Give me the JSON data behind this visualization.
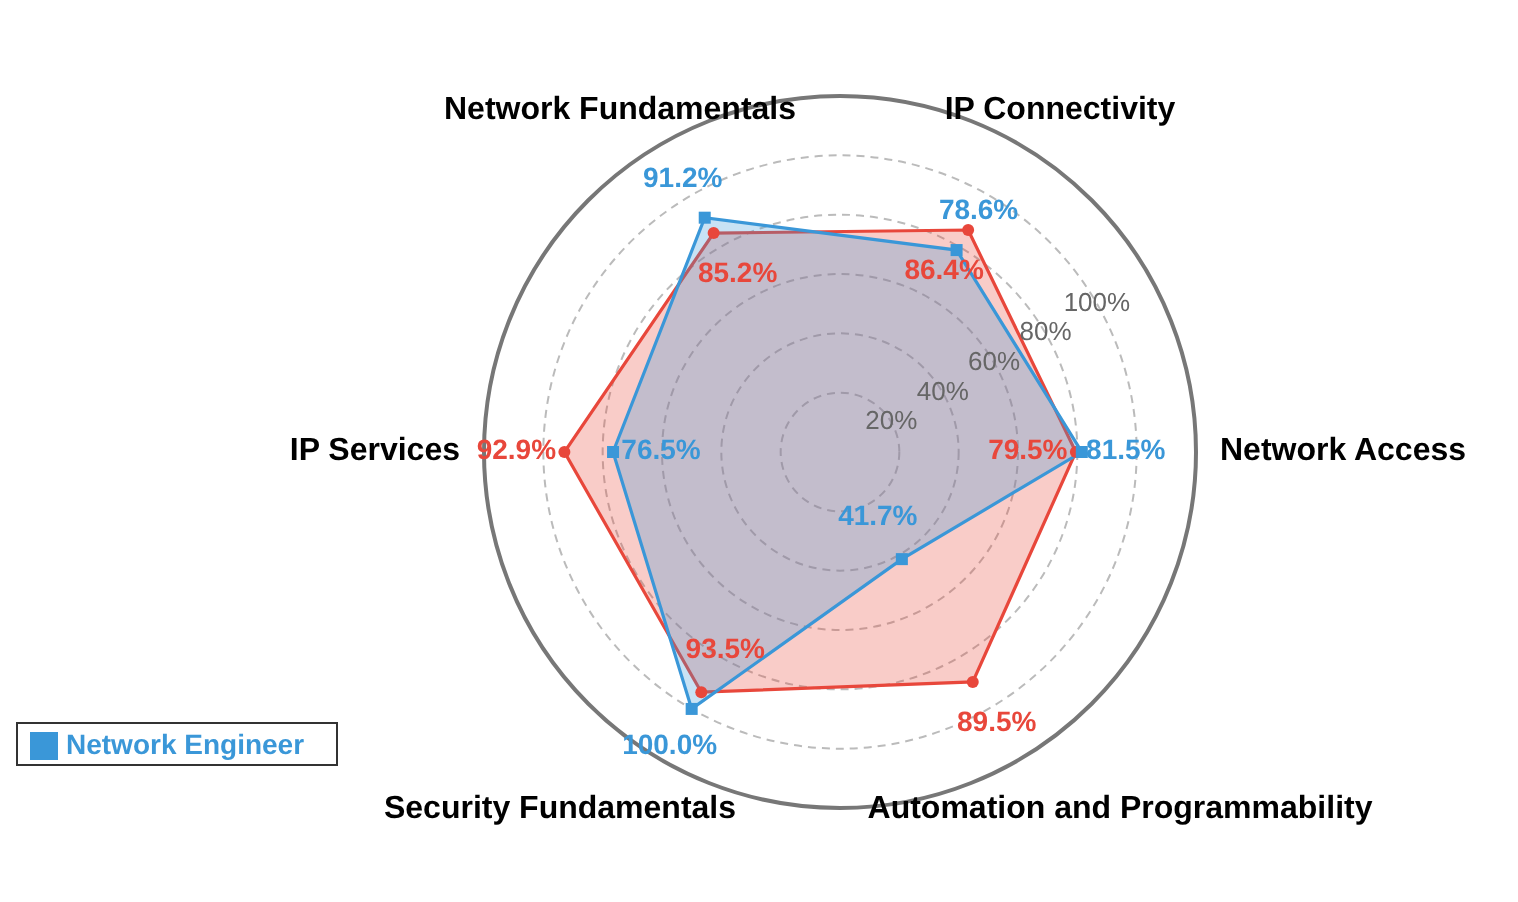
{
  "chart_data": {
    "type": "radar",
    "categories": [
      "IP Connectivity",
      "Network Access",
      "Automation and Programmability",
      "Security Fundamentals",
      "IP Services",
      "Network Fundamentals"
    ],
    "series": [
      {
        "color": "#e8473b",
        "marker": "circle",
        "values": [
          86.4,
          79.5,
          89.5,
          93.5,
          92.9,
          85.2
        ],
        "value_labels": [
          "86.4%",
          "79.5%",
          "89.5%",
          "93.5%",
          "92.9%",
          "85.2%"
        ]
      },
      {
        "name": "Network Engineer",
        "color": "#3a97d8",
        "marker": "square",
        "values": [
          78.6,
          81.5,
          41.7,
          100.0,
          76.5,
          91.2
        ],
        "value_labels": [
          "78.6%",
          "81.5%",
          "41.7%",
          "100.0%",
          "76.5%",
          "91.2%"
        ]
      }
    ],
    "ylim": [
      0,
      120
    ],
    "yticks": [
      {
        "value": 20,
        "label": "20%"
      },
      {
        "value": 40,
        "label": "40%"
      },
      {
        "value": 60,
        "label": "60%"
      },
      {
        "value": 80,
        "label": "80%"
      },
      {
        "value": 100,
        "label": "100%"
      }
    ],
    "grid": true,
    "legend": "bottom left"
  }
}
